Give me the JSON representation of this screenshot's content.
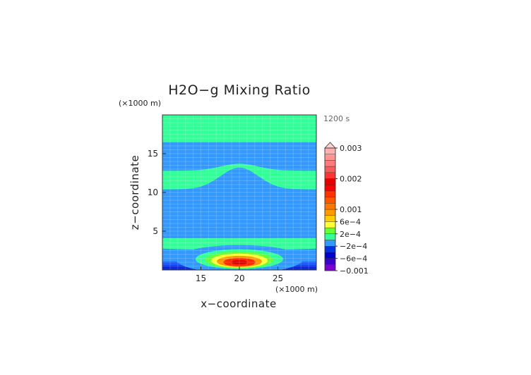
{
  "chart_data": {
    "type": "heatmap",
    "title": "H2O−g Mixing Ratio",
    "xlabel": "x−coordinate",
    "ylabel": "z−coordinate",
    "x_units": "(×1000 m)",
    "z_units": "(×1000 m)",
    "time_label": "1200 s",
    "xlim": [
      10,
      30
    ],
    "ylim": [
      0,
      20
    ],
    "x_ticks": [
      15,
      20,
      25
    ],
    "y_ticks": [
      5,
      10,
      15
    ],
    "contour_levels": [
      -0.001,
      -0.0008,
      -0.0006,
      -0.0004,
      -0.0002,
      0,
      0.0002,
      0.0004,
      0.0006,
      0.0008,
      0.001,
      0.0012,
      0.0014,
      0.0016,
      0.0018,
      0.002,
      0.0022,
      0.0024,
      0.0026,
      0.0028,
      0.003
    ],
    "colorbar_labels": [
      {
        "value": 0.003,
        "label": "0.003"
      },
      {
        "value": 0.002,
        "label": "0.002"
      },
      {
        "value": 0.001,
        "label": "0.001"
      },
      {
        "value": 0.0006,
        "label": "6e−4"
      },
      {
        "value": 0.0002,
        "label": "2e−4"
      },
      {
        "value": -0.0002,
        "label": "−2e−4"
      },
      {
        "value": -0.0006,
        "label": "−6e−4"
      },
      {
        "value": -0.001,
        "label": "−0.001"
      }
    ],
    "features": [
      {
        "name": "upper anomaly layer",
        "z_range": [
          16.5,
          20
        ],
        "level": "0 to 2e−4"
      },
      {
        "name": "wavy anomaly band",
        "z_range": [
          10,
          14
        ],
        "level": "0 to 2e−4"
      },
      {
        "name": "near-surface moist bubble",
        "center": [
          20,
          1
        ],
        "max": 0.002
      },
      {
        "name": "near-surface dry layer",
        "z_range": [
          0,
          1
        ],
        "min": -0.0006
      }
    ]
  }
}
